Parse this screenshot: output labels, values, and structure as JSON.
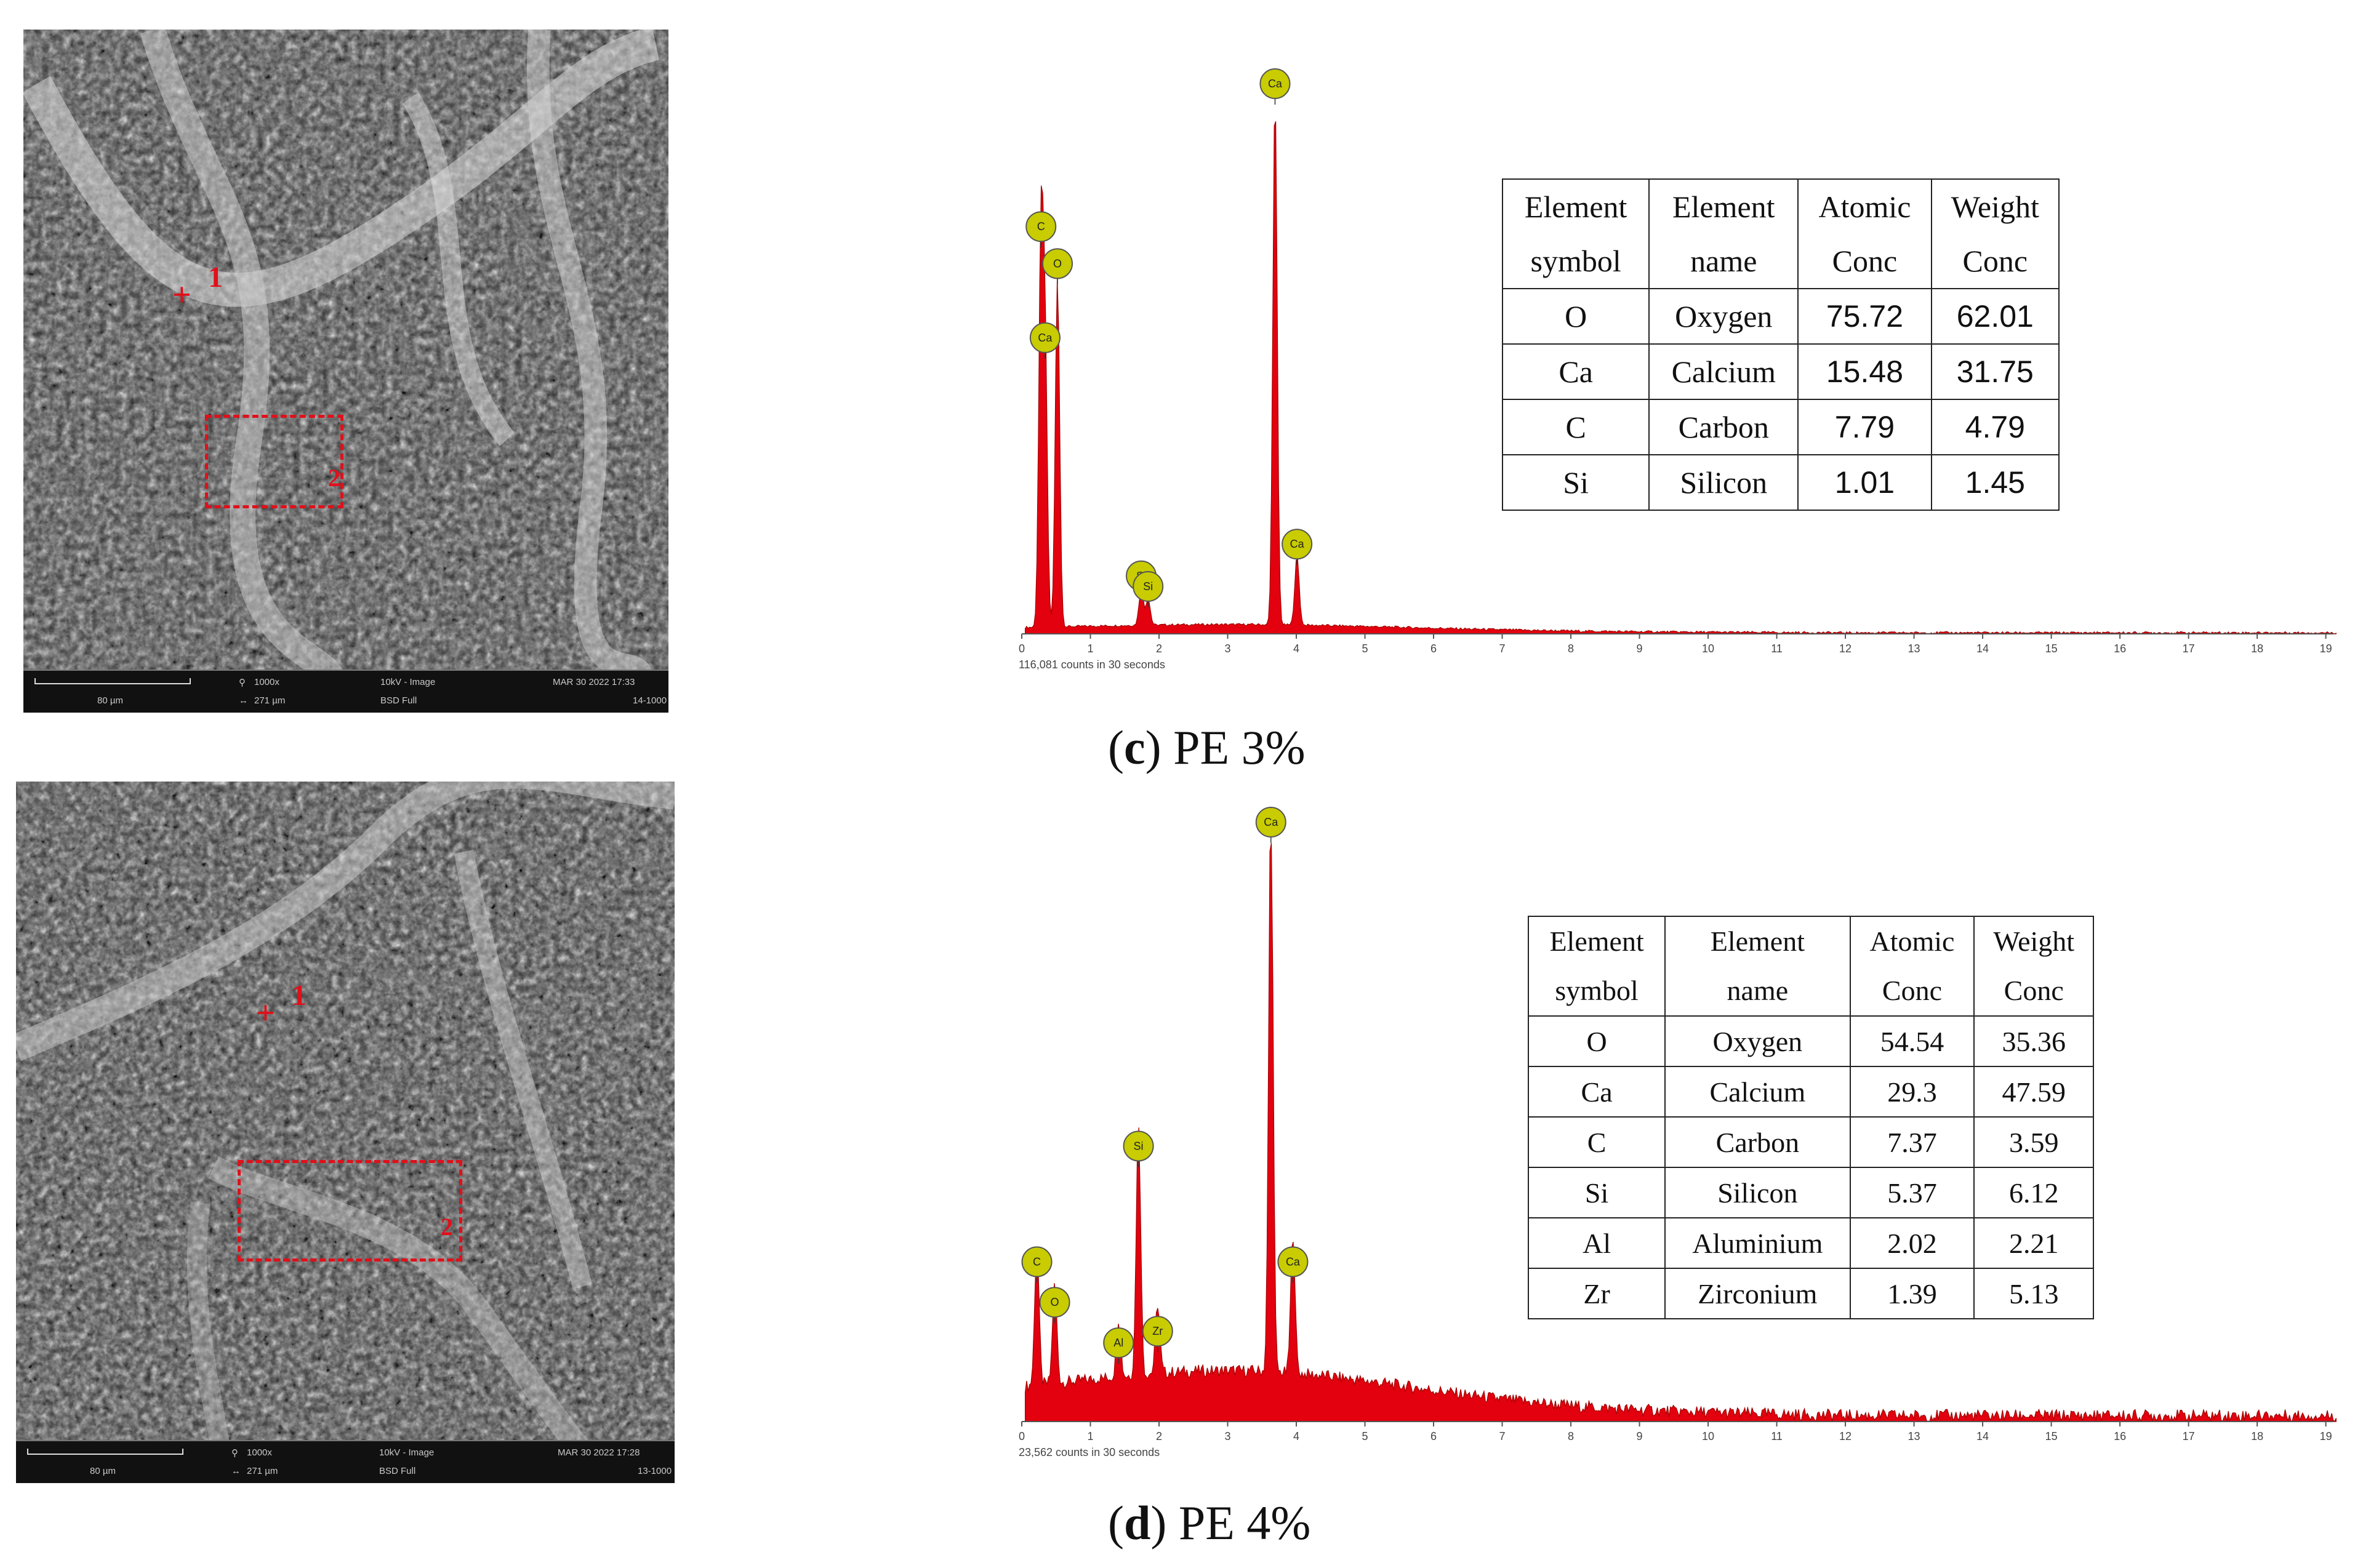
{
  "panel_c": {
    "caption_letter": "c",
    "caption_text": "PE 3%",
    "sem": {
      "scale_label": "80 µm",
      "mag": "1000x",
      "hfw": "271 µm",
      "mode": "10kV - Image",
      "detector": "BSD Full",
      "date": "MAR 30 2022 17:33",
      "code": "14-1000",
      "point_label": "1",
      "region_label": "2"
    },
    "chart_data": {
      "type": "line",
      "title": "",
      "xlabel": "",
      "ylabel": "",
      "note": "116,081 counts in 30 seconds",
      "xlim": [
        0,
        20
      ],
      "x_ticks": [
        "0",
        "1",
        "2",
        "3",
        "4",
        "5",
        "6",
        "7",
        "8",
        "9",
        "10",
        "11",
        "12",
        "13",
        "14",
        "15",
        "16",
        "17",
        "18",
        "19"
      ],
      "peaks": [
        {
          "element": "C",
          "x": 0.28,
          "height": 0.73
        },
        {
          "element": "O",
          "x": 0.52,
          "height": 0.66
        },
        {
          "element": "Ca",
          "x": 0.34,
          "height": 0.52
        },
        {
          "element": "Si",
          "x": 1.74,
          "height": 0.07
        },
        {
          "element": "Si",
          "x": 1.84,
          "height": 0.05
        },
        {
          "element": "Ca",
          "x": 3.69,
          "height": 1.0
        },
        {
          "element": "Ca",
          "x": 4.01,
          "height": 0.13
        }
      ]
    },
    "table": {
      "headers": [
        [
          "Element",
          "symbol"
        ],
        [
          "Element",
          "name"
        ],
        [
          "Atomic",
          "Conc"
        ],
        [
          "Weight",
          "Conc"
        ]
      ],
      "rows": [
        [
          "O",
          "Oxygen",
          "75.72",
          "62.01"
        ],
        [
          "Ca",
          "Calcium",
          "15.48",
          "31.75"
        ],
        [
          "C",
          "Carbon",
          "7.79",
          "4.79"
        ],
        [
          "Si",
          "Silicon",
          "1.01",
          "1.45"
        ]
      ]
    }
  },
  "panel_d": {
    "caption_letter": "d",
    "caption_text": "PE 4%",
    "sem": {
      "scale_label": "80 µm",
      "mag": "1000x",
      "hfw": "271 µm",
      "mode": "10kV - Image",
      "detector": "BSD Full",
      "date": "MAR 30 2022 17:28",
      "code": "13-1000",
      "point_label": "1",
      "region_label": "2"
    },
    "chart_data": {
      "type": "line",
      "title": "",
      "xlabel": "",
      "ylabel": "",
      "note": "23,562 counts in 30 seconds",
      "xlim": [
        0,
        20
      ],
      "x_ticks": [
        "0",
        "1",
        "2",
        "3",
        "4",
        "5",
        "6",
        "7",
        "8",
        "9",
        "10",
        "11",
        "12",
        "13",
        "14",
        "15",
        "16",
        "17",
        "18",
        "19"
      ],
      "peaks": [
        {
          "element": "C",
          "x": 0.22,
          "height": 0.24
        },
        {
          "element": "O",
          "x": 0.48,
          "height": 0.17
        },
        {
          "element": "Al",
          "x": 1.41,
          "height": 0.1
        },
        {
          "element": "Si",
          "x": 1.7,
          "height": 0.44
        },
        {
          "element": "Zr",
          "x": 1.98,
          "height": 0.12
        },
        {
          "element": "Ca",
          "x": 3.63,
          "height": 1.0
        },
        {
          "element": "Ca",
          "x": 3.95,
          "height": 0.24
        }
      ]
    },
    "table": {
      "headers": [
        [
          "Element",
          "symbol"
        ],
        [
          "Element",
          "name"
        ],
        [
          "Atomic",
          "Conc"
        ],
        [
          "Weight",
          "Conc"
        ]
      ],
      "rows": [
        [
          "O",
          "Oxygen",
          "54.54",
          "35.36"
        ],
        [
          "Ca",
          "Calcium",
          "29.3",
          "47.59"
        ],
        [
          "C",
          "Carbon",
          "7.37",
          "3.59"
        ],
        [
          "Si",
          "Silicon",
          "5.37",
          "6.12"
        ],
        [
          "Al",
          "Aluminium",
          "2.02",
          "2.21"
        ],
        [
          "Zr",
          "Zirconium",
          "1.39",
          "5.13"
        ]
      ]
    }
  },
  "colors": {
    "spectrum_fill": "#e3000f",
    "peak_marker": "#c8cc00",
    "marker_red": "#e0101a"
  }
}
